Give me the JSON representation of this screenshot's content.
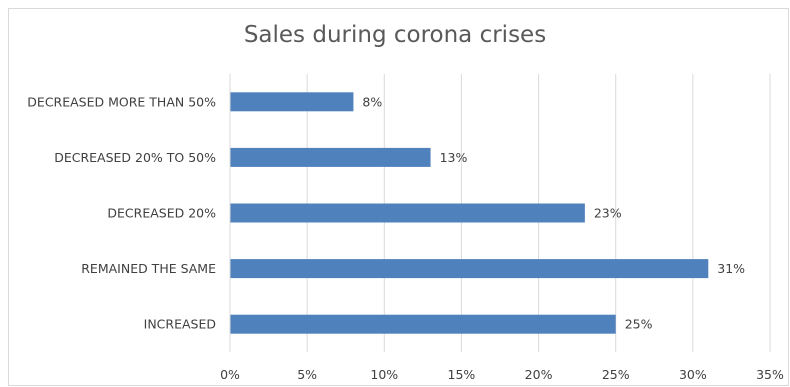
{
  "chart_data": {
    "type": "bar",
    "orientation": "horizontal",
    "title": "Sales during corona crises",
    "categories": [
      "INCREASED",
      "REMAINED THE SAME",
      "DECREASED 20%",
      "DECREASED 20% TO 50%",
      "DECREASED MORE THAN 50%"
    ],
    "values": [
      25,
      31,
      23,
      13,
      8
    ],
    "data_labels": [
      "25%",
      "31%",
      "23%",
      "13%",
      "8%"
    ],
    "xlim": [
      0,
      35
    ],
    "x_ticks": [
      "0%",
      "5%",
      "10%",
      "15%",
      "20%",
      "25%",
      "30%",
      "35%"
    ],
    "xlabel": "",
    "ylabel": "",
    "grid": true,
    "legend": "none",
    "colors": {
      "bar": "#4f81bd",
      "grid": "#d9d9d9",
      "text": "#404040",
      "title": "#595959"
    }
  }
}
